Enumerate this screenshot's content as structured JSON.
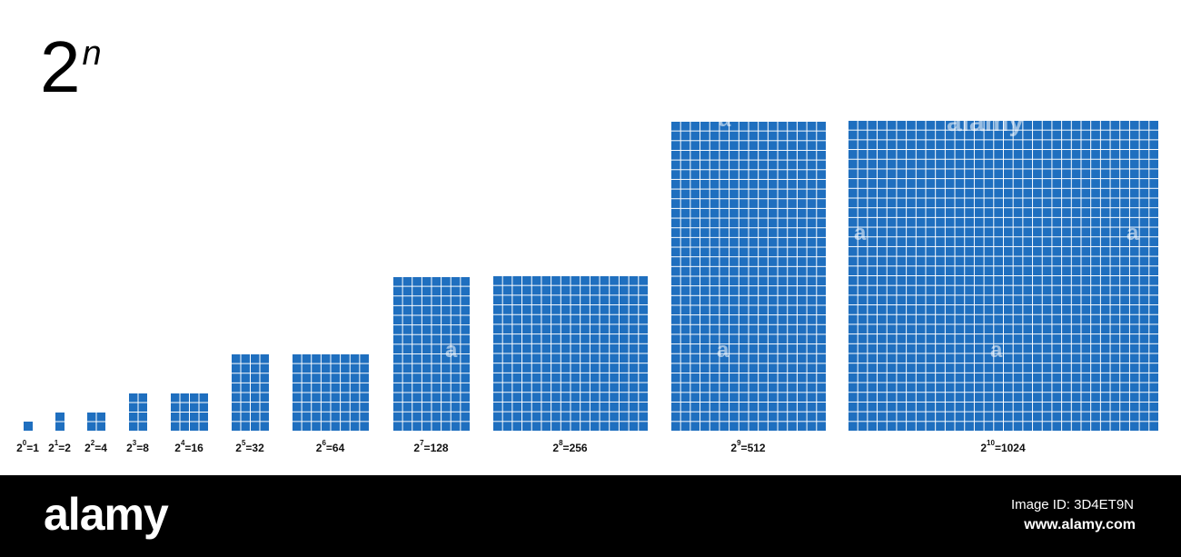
{
  "title": {
    "base": "2",
    "exponent": "n"
  },
  "grid_color": "#1f6fbf",
  "grid_line_color": "#ffffff",
  "items": [
    {
      "base": "2",
      "exp": "0",
      "result": "=1",
      "cols": 1,
      "rows": 1
    },
    {
      "base": "2",
      "exp": "1",
      "result": "=2",
      "cols": 1,
      "rows": 2
    },
    {
      "base": "2",
      "exp": "2",
      "result": "=4",
      "cols": 2,
      "rows": 2
    },
    {
      "base": "2",
      "exp": "3",
      "result": "=8",
      "cols": 2,
      "rows": 4
    },
    {
      "base": "2",
      "exp": "4",
      "result": "=16",
      "cols": 4,
      "rows": 4
    },
    {
      "base": "2",
      "exp": "5",
      "result": "=32",
      "cols": 4,
      "rows": 8
    },
    {
      "base": "2",
      "exp": "6",
      "result": "=64",
      "cols": 8,
      "rows": 8
    },
    {
      "base": "2",
      "exp": "7",
      "result": "=128",
      "cols": 8,
      "rows": 16
    },
    {
      "base": "2",
      "exp": "8",
      "result": "=256",
      "cols": 16,
      "rows": 16
    },
    {
      "base": "2",
      "exp": "9",
      "result": "=512",
      "cols": 16,
      "rows": 32
    },
    {
      "base": "2",
      "exp": "10",
      "result": "=1024",
      "cols": 32,
      "rows": 32
    }
  ],
  "watermark": {
    "word": "alamy",
    "mark": "a"
  },
  "footer": {
    "brand": "alamy",
    "image_id": "Image ID: 3D4ET9N",
    "site": "www.alamy.com"
  }
}
